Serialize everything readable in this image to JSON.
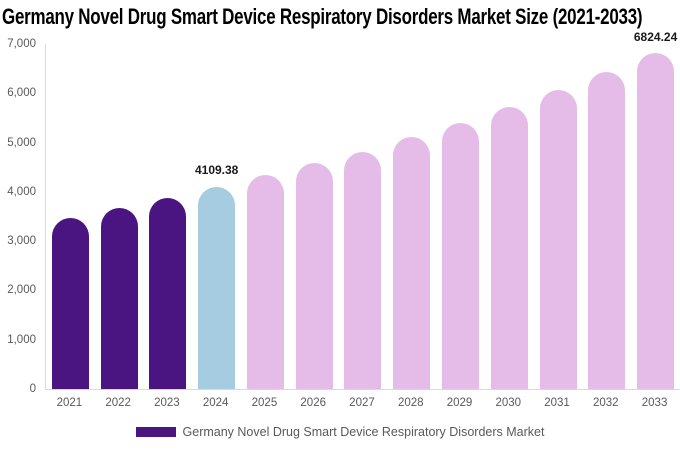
{
  "title": "Germany Novel Drug Smart Device Respiratory Disorders Market Size (2021-2033)",
  "colors": {
    "historical": "#4a1580",
    "current_year": "#a5cce0",
    "forecast": "#e5bce8",
    "axis_line": "#d9d9d9",
    "axis_text": "#595959",
    "value_label_text": "#1a1a1a",
    "title_text": "#000000",
    "background": "#ffffff"
  },
  "legend": {
    "label": "Germany Novel Drug Smart Device Respiratory Disorders Market",
    "swatch_color": "#4a1580"
  },
  "y_axis": {
    "min": 0,
    "max": 7000,
    "tick_step": 1000,
    "ticks": [
      {
        "value": 7000,
        "label": "7,000"
      },
      {
        "value": 6000,
        "label": "6,000"
      },
      {
        "value": 5000,
        "label": "5,000"
      },
      {
        "value": 4000,
        "label": "4,000"
      },
      {
        "value": 3000,
        "label": "3,000"
      },
      {
        "value": 2000,
        "label": "2,000"
      },
      {
        "value": 1000,
        "label": "1,000"
      },
      {
        "value": 0,
        "label": "0"
      }
    ]
  },
  "chart_data": {
    "type": "bar",
    "title": "Germany Novel Drug Smart Device Respiratory Disorders Market Size (2021-2033)",
    "series_name": "Germany Novel Drug Smart Device Respiratory Disorders Market",
    "categories": [
      "2021",
      "2022",
      "2023",
      "2024",
      "2025",
      "2026",
      "2027",
      "2028",
      "2029",
      "2030",
      "2031",
      "2032",
      "2033"
    ],
    "values": [
      3470,
      3670,
      3880,
      4109.38,
      4345,
      4590,
      4810,
      5115,
      5400,
      5720,
      6065,
      6430,
      6824.24
    ],
    "values_note": "only 2024 and 2033 are labeled on the chart; other values estimated from bar heights",
    "xlabel": "",
    "ylabel": "",
    "ylim": [
      0,
      7000
    ],
    "grid": false,
    "legend_position": "bottom",
    "bars": [
      {
        "year": "2021",
        "value": 3470,
        "color_role": "historical",
        "label": ""
      },
      {
        "year": "2022",
        "value": 3670,
        "color_role": "historical",
        "label": ""
      },
      {
        "year": "2023",
        "value": 3880,
        "color_role": "historical",
        "label": ""
      },
      {
        "year": "2024",
        "value": 4109.38,
        "color_role": "current_year",
        "label": "4109.38"
      },
      {
        "year": "2025",
        "value": 4345,
        "color_role": "forecast",
        "label": ""
      },
      {
        "year": "2026",
        "value": 4590,
        "color_role": "forecast",
        "label": ""
      },
      {
        "year": "2027",
        "value": 4810,
        "color_role": "forecast",
        "label": ""
      },
      {
        "year": "2028",
        "value": 5115,
        "color_role": "forecast",
        "label": ""
      },
      {
        "year": "2029",
        "value": 5400,
        "color_role": "forecast",
        "label": ""
      },
      {
        "year": "2030",
        "value": 5720,
        "color_role": "forecast",
        "label": ""
      },
      {
        "year": "2031",
        "value": 6065,
        "color_role": "forecast",
        "label": ""
      },
      {
        "year": "2032",
        "value": 6430,
        "color_role": "forecast",
        "label": ""
      },
      {
        "year": "2033",
        "value": 6824.24,
        "color_role": "forecast",
        "label": "6824.24"
      }
    ]
  }
}
